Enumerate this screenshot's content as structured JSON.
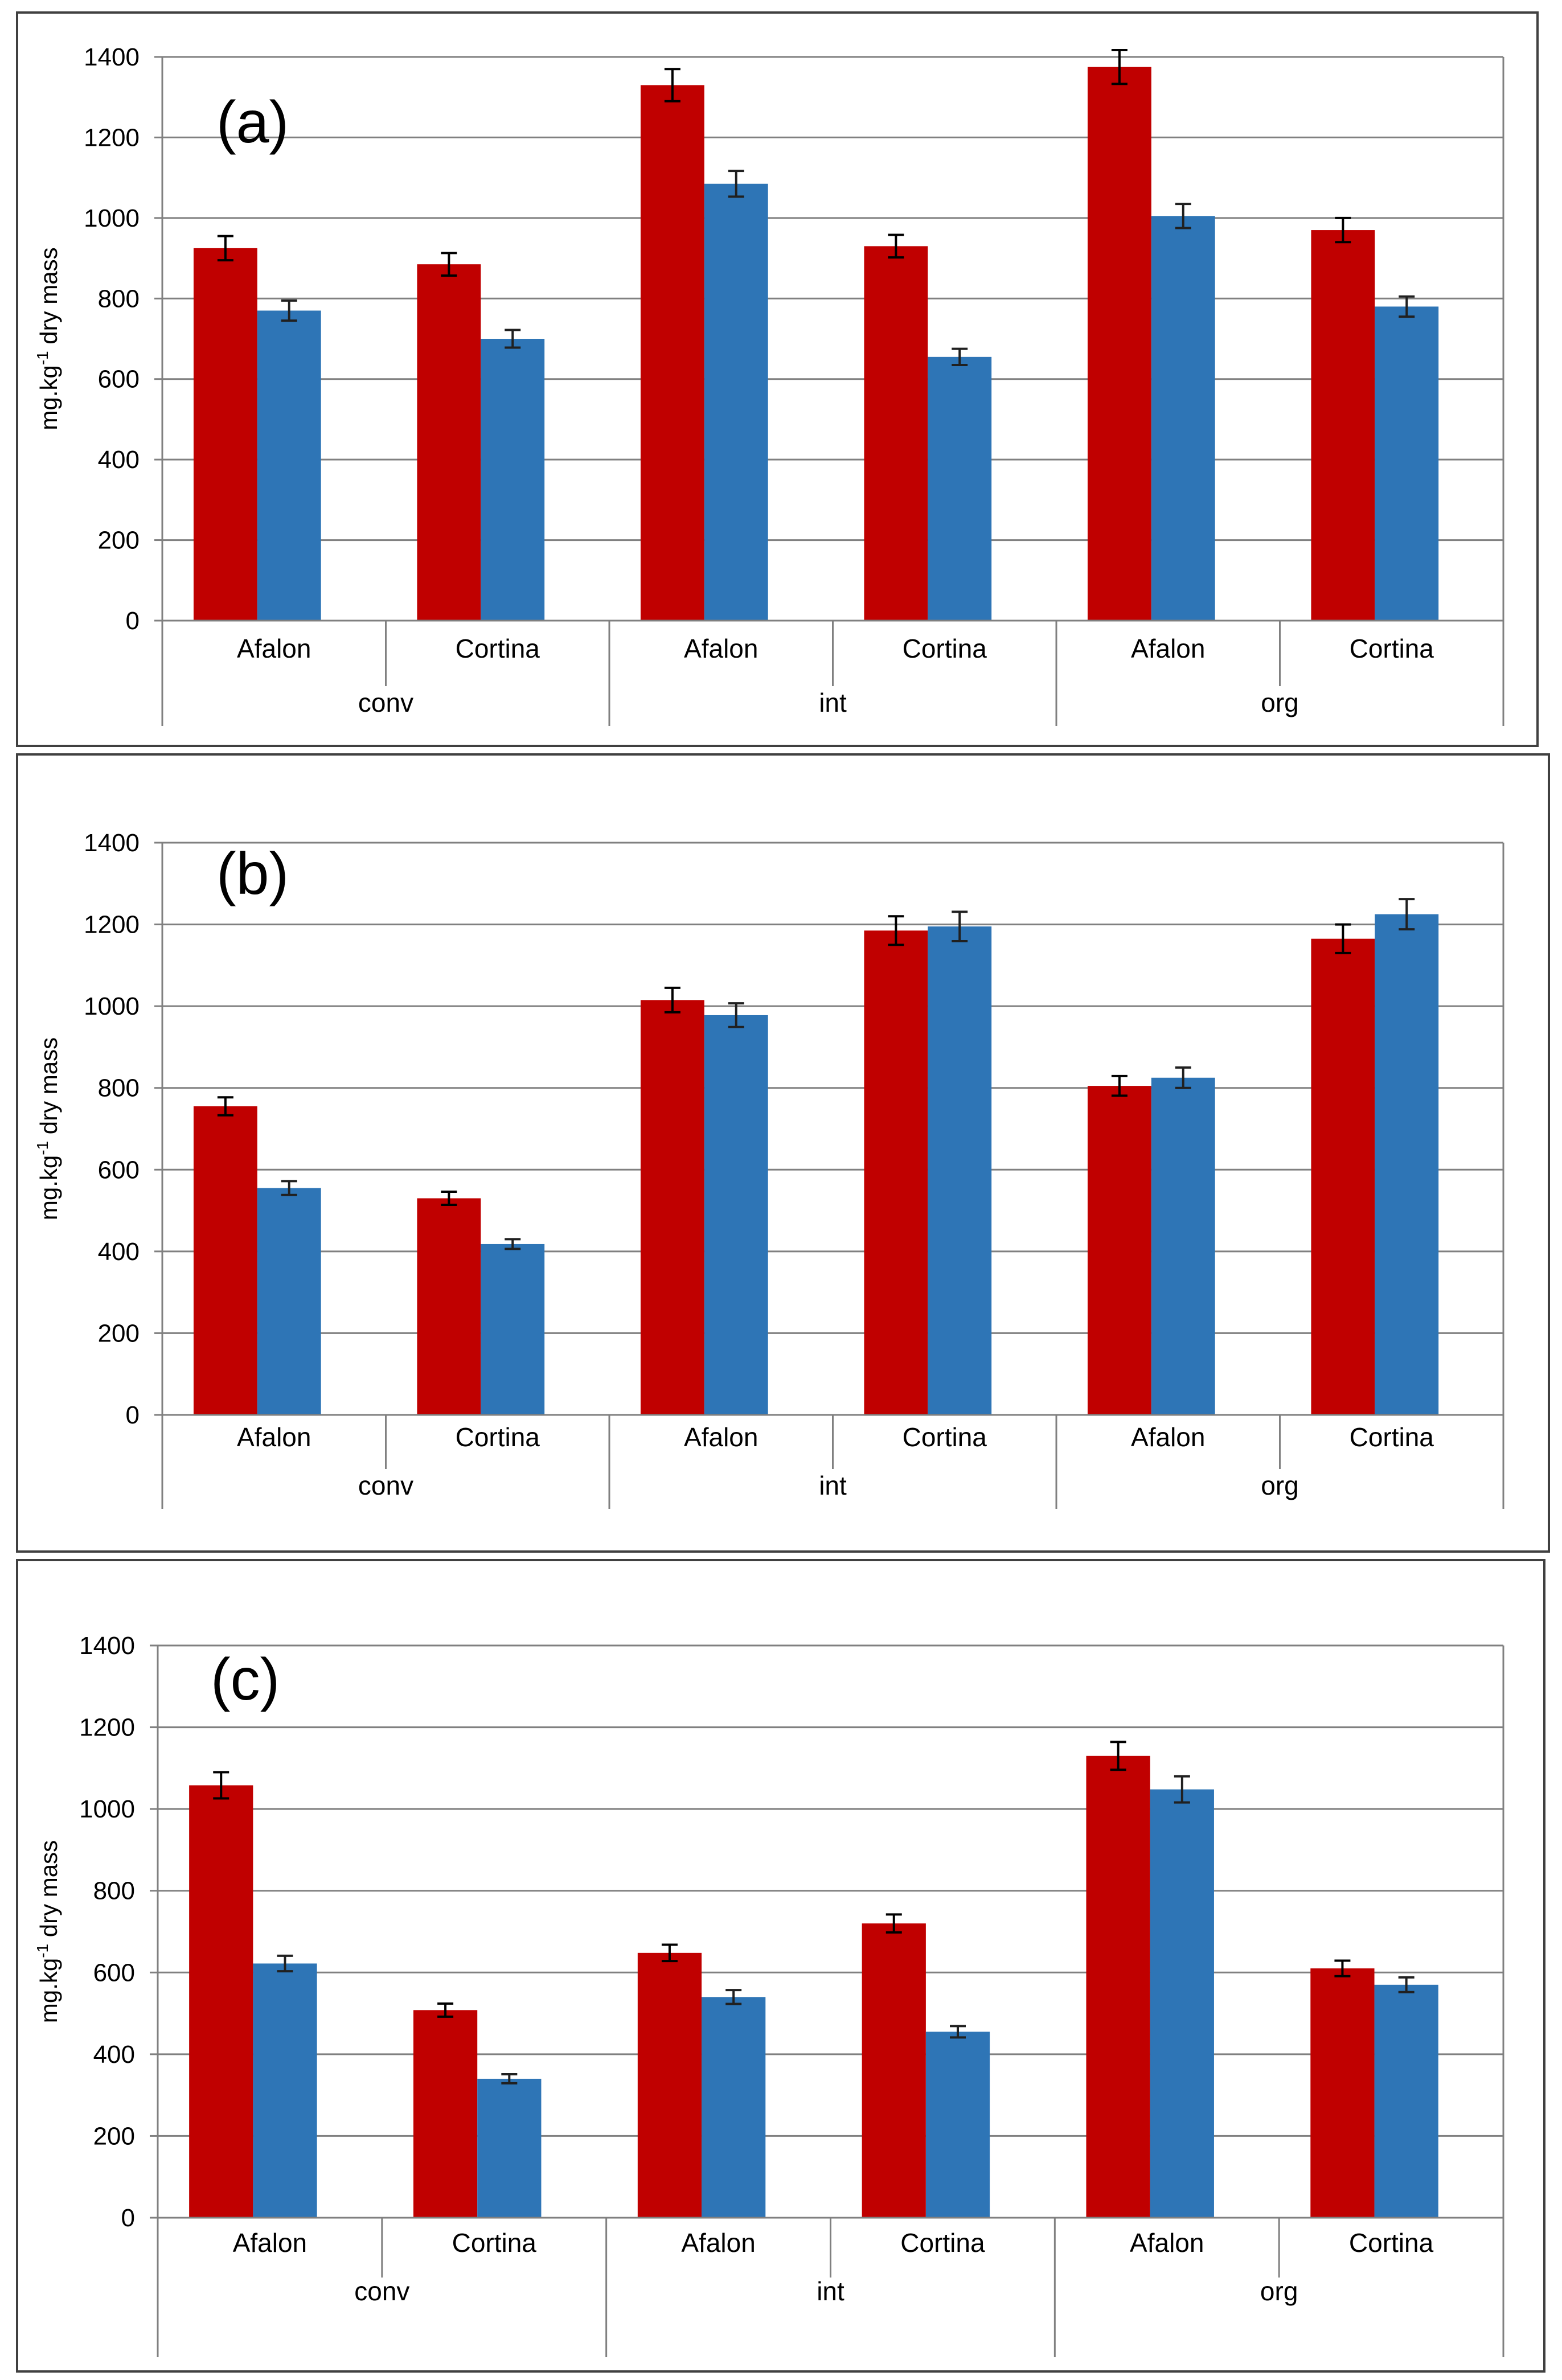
{
  "chart_data": [
    {
      "type": "bar",
      "panel_label": "(a)",
      "ylabel": "mg.kg",
      "ylabel_superscript": "-1",
      "ylabel_suffix": " dry mass",
      "ylim": [
        0,
        1400
      ],
      "yticks": [
        "0",
        "200",
        "400",
        "600",
        "800",
        "1000",
        "1200",
        "1400"
      ],
      "grid": true,
      "categories": [
        "Afalon",
        "Cortina",
        "Afalon",
        "Cortina",
        "Afalon",
        "Cortina"
      ],
      "groups": [
        "conv",
        "int",
        "org"
      ],
      "series": [
        {
          "name": "red",
          "color": "#C00000",
          "values": [
            925,
            885,
            1330,
            930,
            1375,
            970
          ],
          "errors": [
            30,
            28,
            40,
            28,
            42,
            30
          ]
        },
        {
          "name": "blue",
          "color": "#2E75B6",
          "values": [
            770,
            700,
            1085,
            655,
            1005,
            780
          ],
          "errors": [
            25,
            22,
            32,
            20,
            30,
            25
          ]
        }
      ]
    },
    {
      "type": "bar",
      "panel_label": "(b)",
      "ylabel": "mg.kg",
      "ylabel_superscript": "-1",
      "ylabel_suffix": " dry mass",
      "ylim": [
        0,
        1400
      ],
      "yticks": [
        "0",
        "200",
        "400",
        "600",
        "800",
        "1000",
        "1200",
        "1400"
      ],
      "grid": true,
      "categories": [
        "Afalon",
        "Cortina",
        "Afalon",
        "Cortina",
        "Afalon",
        "Cortina"
      ],
      "groups": [
        "conv",
        "int",
        "org"
      ],
      "series": [
        {
          "name": "red",
          "color": "#C00000",
          "values": [
            755,
            530,
            1015,
            1185,
            805,
            1165
          ],
          "errors": [
            22,
            16,
            30,
            35,
            24,
            35
          ]
        },
        {
          "name": "blue",
          "color": "#2E75B6",
          "values": [
            555,
            418,
            978,
            1195,
            825,
            1225
          ],
          "errors": [
            17,
            12,
            29,
            36,
            25,
            37
          ]
        }
      ]
    },
    {
      "type": "bar",
      "panel_label": "(c)",
      "ylabel": "mg.kg",
      "ylabel_superscript": "-1",
      "ylabel_suffix": " dry mass",
      "ylim": [
        0,
        1400
      ],
      "yticks": [
        "0",
        "200",
        "400",
        "600",
        "800",
        "1000",
        "1200",
        "1400"
      ],
      "grid": true,
      "categories": [
        "Afalon",
        "Cortina",
        "Afalon",
        "Cortina",
        "Afalon",
        "Cortina"
      ],
      "groups": [
        "conv",
        "int",
        "org"
      ],
      "series": [
        {
          "name": "red",
          "color": "#C00000",
          "values": [
            1058,
            508,
            648,
            720,
            1130,
            610
          ],
          "errors": [
            32,
            16,
            20,
            22,
            34,
            19
          ]
        },
        {
          "name": "blue",
          "color": "#2E75B6",
          "values": [
            622,
            340,
            540,
            455,
            1048,
            570
          ],
          "errors": [
            19,
            11,
            17,
            14,
            32,
            18
          ]
        }
      ]
    }
  ]
}
